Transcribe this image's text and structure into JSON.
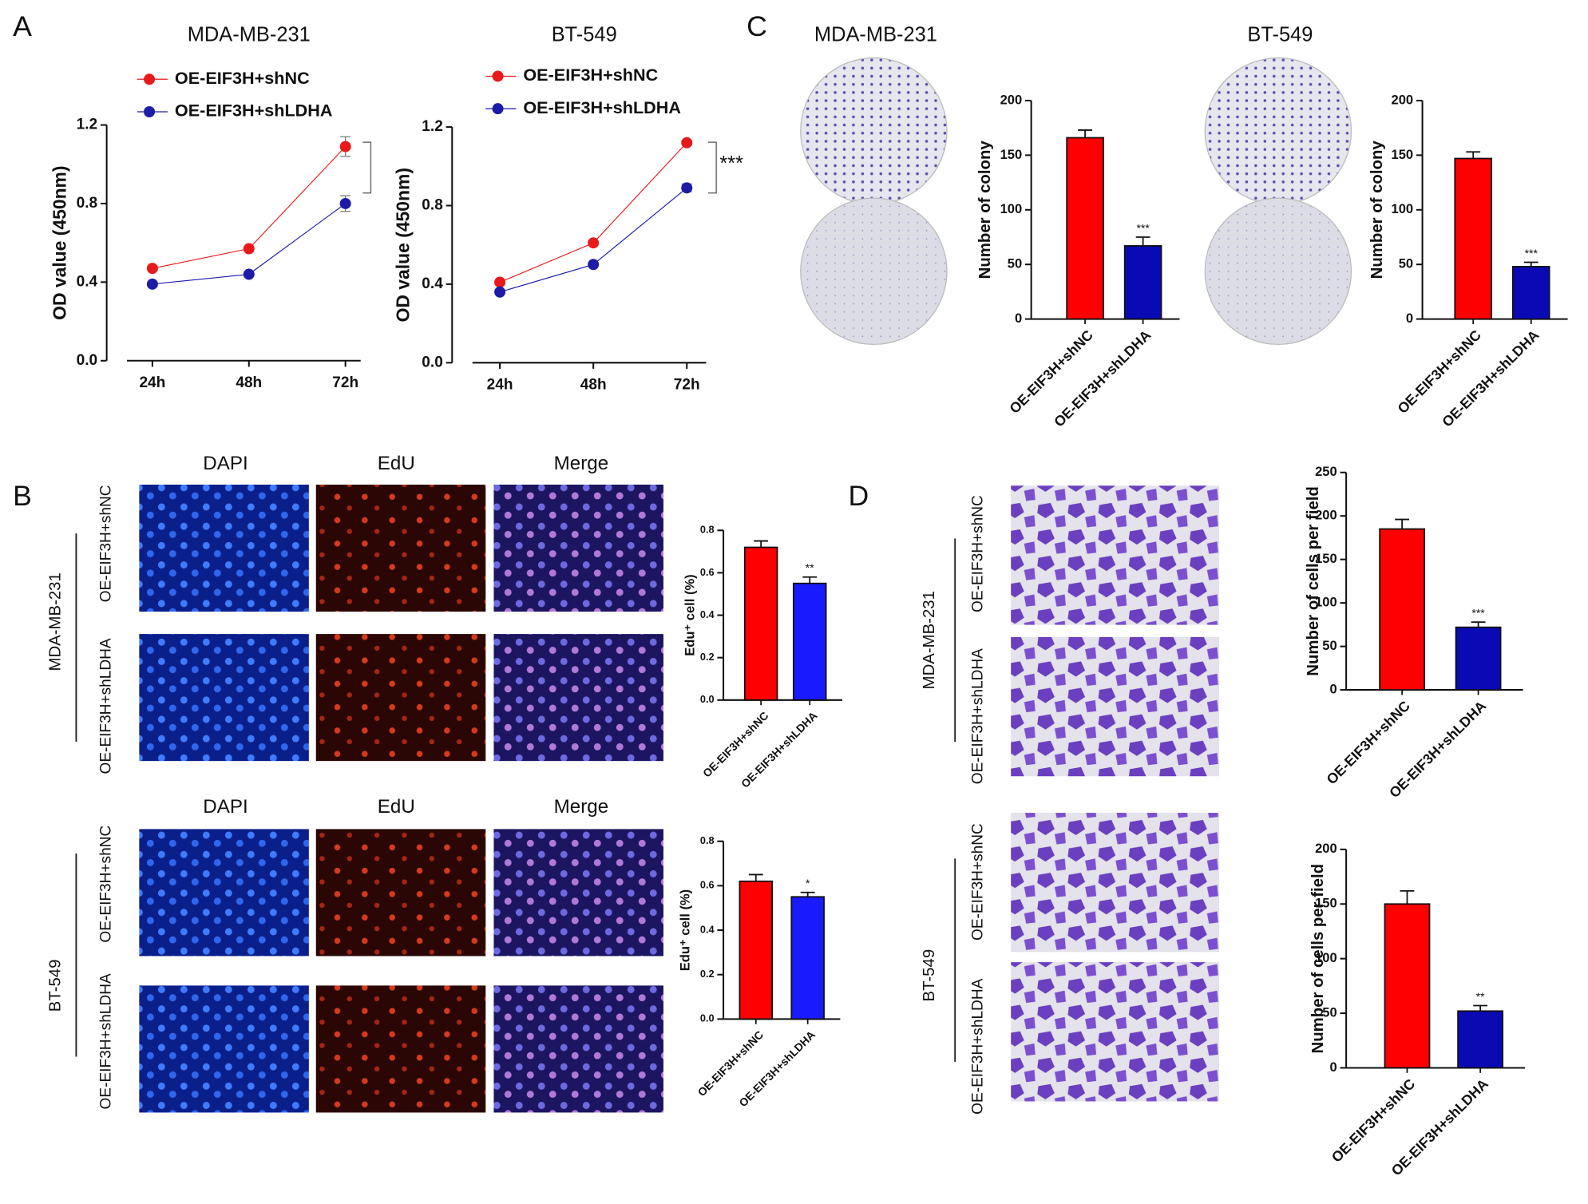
{
  "chart_data": [
    {
      "type": "line",
      "title": "MDA-MB-231",
      "y_label": "OD value (450nm)",
      "categories": [
        "24h",
        "48h",
        "72h"
      ],
      "series": [
        {
          "name": "OE-EIF3H+shNC",
          "color": "#e8191b",
          "values": [
            0.47,
            0.57,
            1.09
          ],
          "errors": [
            0.01,
            0.01,
            0.05
          ]
        },
        {
          "name": "OE-EIF3H+shLDHA",
          "color": "#1c1ca8",
          "values": [
            0.39,
            0.44,
            0.8
          ],
          "errors": [
            0.01,
            0.01,
            0.04
          ]
        }
      ],
      "ylim": [
        0,
        1.2
      ],
      "yticks": [
        {
          "value": 0,
          "label": "0.0"
        },
        0.4,
        0.8,
        1.2
      ]
    },
    {
      "type": "line",
      "title": "BT-549",
      "y_label": "OD value (450nm)",
      "categories": [
        "24h",
        "48h",
        "72h"
      ],
      "series": [
        {
          "name": "OE-EIF3H+shNC",
          "color": "#e8191b",
          "values": [
            0.41,
            0.61,
            1.12
          ],
          "errors": [
            0.01,
            0.01,
            0.01
          ]
        },
        {
          "name": "OE-EIF3H+shLDHA",
          "color": "#1c1ca8",
          "values": [
            0.36,
            0.5,
            0.89
          ],
          "errors": [
            0.01,
            0.01,
            0.02
          ]
        }
      ],
      "ylim": [
        0,
        1.2
      ],
      "yticks": [
        {
          "value": 0,
          "label": "0.0"
        },
        0.4,
        0.8,
        1.2
      ],
      "annotation": "***"
    },
    {
      "type": "bar",
      "y_label": "Number of colony",
      "categories": [
        "OE-EIF3H+shNC",
        "OE-EIF3H+shLDHA"
      ],
      "values": [
        166,
        67
      ],
      "errors": [
        7,
        8
      ],
      "colors": [
        "#ff0000",
        "#0a0ab4"
      ],
      "ylim": [
        0,
        200
      ],
      "yticks": [
        0,
        50,
        100,
        150,
        200
      ],
      "annotation": "***"
    },
    {
      "type": "bar",
      "y_label": "Number of colony",
      "categories": [
        "OE-EIF3H+shNC",
        "OE-EIF3H+shLDHA"
      ],
      "values": [
        147,
        48
      ],
      "errors": [
        6,
        4
      ],
      "colors": [
        "#ff0000",
        "#0a0ab4"
      ],
      "ylim": [
        0,
        200
      ],
      "yticks": [
        0,
        50,
        100,
        150,
        200
      ],
      "annotation": "***"
    },
    {
      "type": "bar",
      "y_label": "Edu⁺ cell (%)",
      "categories": [
        "OE-EIF3H+shNC",
        "OE-EIF3H+shLDHA"
      ],
      "values": [
        0.72,
        0.55
      ],
      "errors": [
        0.03,
        0.03
      ],
      "colors": [
        "#ff0000",
        "#1a1aff"
      ],
      "ylim": [
        0,
        0.8
      ],
      "yticks": [
        {
          "value": 0,
          "label": "0.0"
        },
        0.2,
        0.4,
        0.6,
        0.8
      ],
      "annotation": "**"
    },
    {
      "type": "bar",
      "y_label": "Edu⁺ cell (%)",
      "categories": [
        "OE-EIF3H+shNC",
        "OE-EIF3H+shLDHA"
      ],
      "values": [
        0.62,
        0.55
      ],
      "errors": [
        0.03,
        0.02
      ],
      "colors": [
        "#ff0000",
        "#1a1aff"
      ],
      "ylim": [
        0,
        0.8
      ],
      "yticks": [
        {
          "value": 0,
          "label": "0.0"
        },
        0.2,
        0.4,
        0.6,
        0.8
      ],
      "annotation": "*"
    },
    {
      "type": "bar",
      "y_label": "Number of cells per field",
      "categories": [
        "OE-EIF3H+shNC",
        "OE-EIF3H+shLDHA"
      ],
      "values": [
        185,
        72
      ],
      "errors": [
        11,
        6
      ],
      "colors": [
        "#ff0000",
        "#0a0ab4"
      ],
      "ylim": [
        0,
        250
      ],
      "yticks": [
        0,
        50,
        100,
        150,
        200,
        250
      ],
      "annotation": "***"
    },
    {
      "type": "bar",
      "y_label": "Number of cells per field",
      "categories": [
        "OE-EIF3H+shNC",
        "OE-EIF3H+shLDHA"
      ],
      "values": [
        150,
        52
      ],
      "errors": [
        12,
        5
      ],
      "colors": [
        "#ff0000",
        "#0a0ab4"
      ],
      "ylim": [
        0,
        200
      ],
      "yticks": [
        0,
        50,
        100,
        150,
        200
      ],
      "annotation": "**"
    }
  ],
  "figure": {
    "panel_labels": [
      "A",
      "B",
      "C",
      "D"
    ],
    "colony_titles": [
      "MDA-MB-231",
      "BT-549"
    ],
    "stain_headers": [
      "DAPI",
      "EdU",
      "Merge",
      "DAPI",
      "EdU",
      "Merge"
    ],
    "edu_rows": [
      "OE-EIF3H+shNC",
      "OE-EIF3H+shLDHA",
      "OE-EIF3H+shNC",
      "OE-EIF3H+shLDHA"
    ],
    "edu_cell_lines": [
      "MDA-MB-231",
      "BT-549"
    ],
    "transwell_rows": [
      "OE-EIF3H+shNC",
      "OE-EIF3H+shLDHA",
      "OE-EIF3H+shNC",
      "OE-EIF3H+shLDHA"
    ],
    "transwell_cell_lines": [
      "MDA-MB-231",
      "BT-549"
    ]
  }
}
